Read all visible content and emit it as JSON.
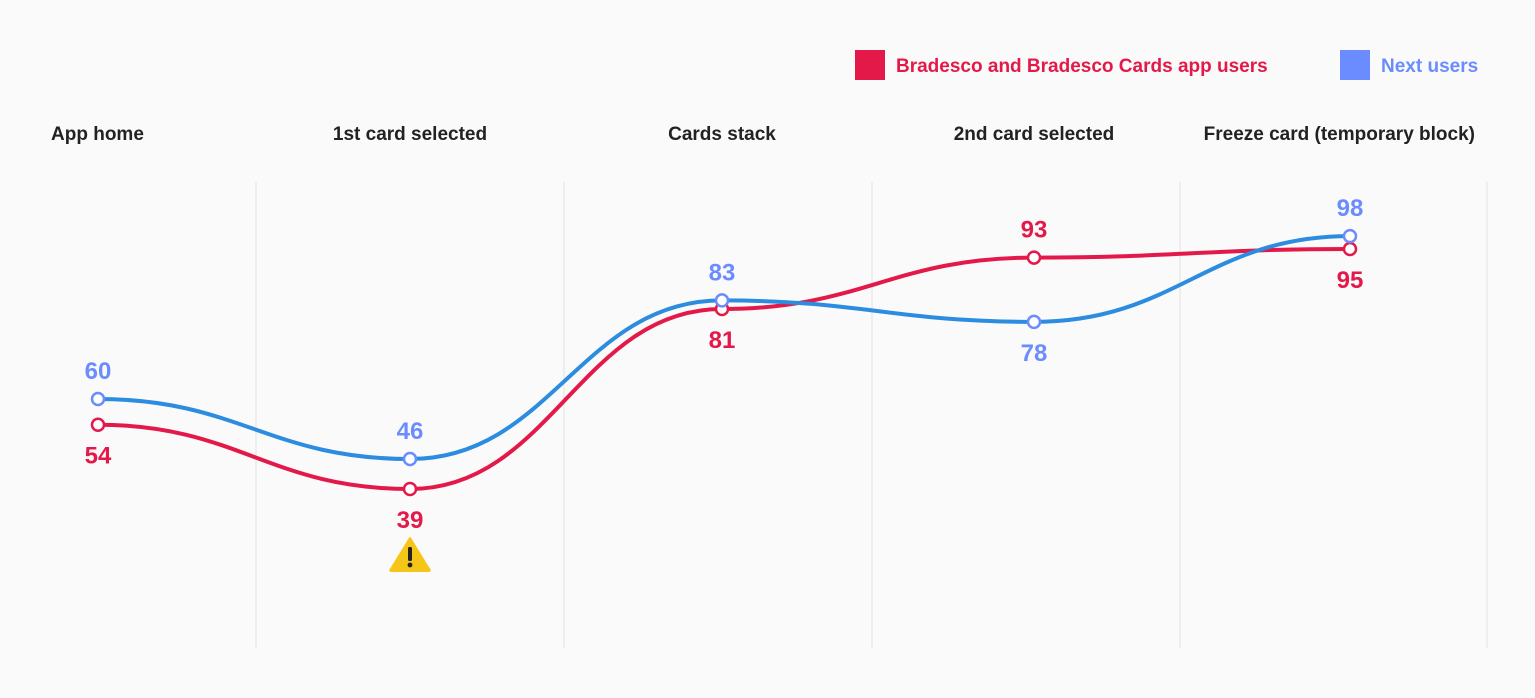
{
  "chart_data": {
    "type": "line",
    "title": "",
    "xlabel": "",
    "ylabel": "",
    "ylim": [
      30,
      100
    ],
    "grid": "vertical",
    "legend_position": "top-right",
    "categories": [
      "App home",
      "1st card selected",
      "Cards stack",
      "2nd card selected",
      "Freeze card (temporary block)"
    ],
    "series": [
      {
        "name": "Bradesco and Bradesco Cards app users",
        "color": "#e3194a",
        "values": [
          54,
          39,
          81,
          93,
          95
        ],
        "label_positions": [
          "below",
          "below",
          "below",
          "above",
          "below"
        ]
      },
      {
        "name": "Next users",
        "color": "#6a8cff",
        "line_color": "#2b8ce0",
        "values": [
          60,
          46,
          83,
          78,
          98
        ],
        "label_positions": [
          "above",
          "above",
          "above",
          "below",
          "above"
        ]
      }
    ],
    "annotations": [
      {
        "category_index": 1,
        "icon": "warning-icon",
        "color": "#f5c518"
      }
    ]
  }
}
